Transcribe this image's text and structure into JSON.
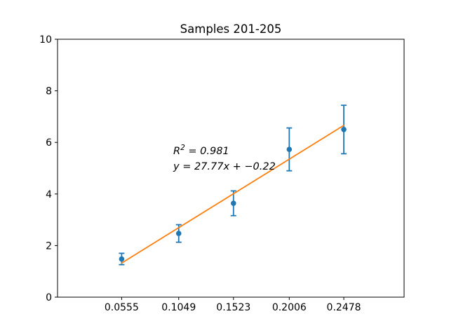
{
  "figure": {
    "background": "#ffffff"
  },
  "chart_data": {
    "type": "scatter",
    "title": "Samples 201-205",
    "xlabel": "",
    "ylabel": "",
    "x": [
      0.0555,
      0.1049,
      0.1523,
      0.2006,
      0.2478
    ],
    "y": [
      1.48,
      2.47,
      3.64,
      5.73,
      6.5
    ],
    "yerr": [
      0.22,
      0.34,
      0.48,
      0.83,
      0.94
    ],
    "fit": {
      "slope": 27.77,
      "intercept": -0.22,
      "r_squared": 0.981
    },
    "annotation": {
      "r2_lhs": "R",
      "r2_sup": "2",
      "r2_rhs": " = 0.981",
      "equation": "y = 27.77x + −0.22"
    },
    "xtick_labels": [
      "0.0555",
      "0.1049",
      "0.1523",
      "0.2006",
      "0.2478"
    ],
    "ytick_values": [
      0,
      2,
      4,
      6,
      8,
      10
    ],
    "ytick_labels": [
      "0",
      "2",
      "4",
      "6",
      "8",
      "10"
    ],
    "xlim": [
      0.0,
      0.3
    ],
    "ylim": [
      0,
      10
    ],
    "grid": false,
    "marker_style": "circle",
    "error_caps": true,
    "colors": {
      "marker": "#1f77b4",
      "error_bar": "#1f77b4",
      "fit_line": "#ff7f0e",
      "axis": "#000000",
      "text": "#000000"
    }
  }
}
